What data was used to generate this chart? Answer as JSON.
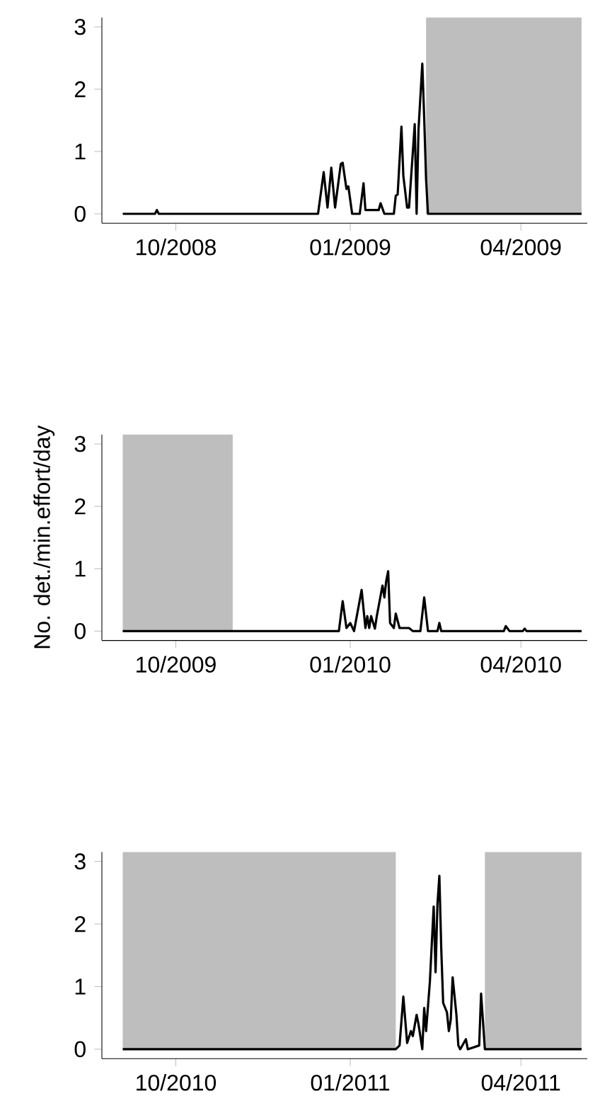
{
  "chart_data": [
    {
      "type": "line",
      "color": "#000000",
      "x": [
        "2008-09-03",
        "2008-09-20",
        "2008-09-21",
        "2008-09-22",
        "2008-12-15",
        "2008-12-18",
        "2008-12-20",
        "2008-12-22",
        "2008-12-24",
        "2008-12-27",
        "2008-12-28",
        "2008-12-30",
        "2008-12-31",
        "2009-01-02",
        "2009-01-06",
        "2009-01-08",
        "2009-01-09",
        "2009-01-16",
        "2009-01-17",
        "2009-01-19",
        "2009-01-24",
        "2009-01-25",
        "2009-01-26",
        "2009-01-28",
        "2009-01-29",
        "2009-01-31",
        "2009-02-01",
        "2009-02-04",
        "2009-02-05",
        "2009-02-06",
        "2009-02-08",
        "2009-02-09",
        "2009-02-10",
        "2009-02-11",
        "2009-05-03"
      ],
      "values": [
        0,
        0,
        0.06,
        0,
        0,
        0.67,
        0.1,
        0.74,
        0.1,
        0.8,
        0.82,
        0.4,
        0.44,
        0,
        0,
        0.49,
        0.06,
        0.06,
        0.17,
        0,
        0,
        0.29,
        0.31,
        1.4,
        0.61,
        0.1,
        0.1,
        1.44,
        0,
        1.35,
        2.41,
        1.54,
        0.55,
        0,
        0
      ],
      "xlim": [
        "2008-08-23",
        "2009-05-06"
      ],
      "ylim": [
        -0.15,
        3.15
      ],
      "xticks": [
        {
          "value": "2008-10-01",
          "label": "10/2008"
        },
        {
          "value": "2009-01-01",
          "label": "01/2009"
        },
        {
          "value": "2009-04-01",
          "label": "04/2009"
        }
      ],
      "yticks": [
        0,
        1,
        2,
        3
      ],
      "bands": [
        {
          "axis": "x",
          "from": "2009-02-10",
          "to": "2009-05-03",
          "color": "#bebebe"
        }
      ]
    },
    {
      "type": "line",
      "color": "#000000",
      "ylabel": "No. det./min.effort/day",
      "x": [
        "2009-09-03",
        "2009-12-26",
        "2009-12-28",
        "2009-12-30",
        "2010-01-01",
        "2010-01-03",
        "2010-01-07",
        "2010-01-09",
        "2010-01-10",
        "2010-01-11",
        "2010-01-12",
        "2010-01-14",
        "2010-01-15",
        "2010-01-18",
        "2010-01-19",
        "2010-01-20",
        "2010-01-21",
        "2010-01-22",
        "2010-01-24",
        "2010-01-25",
        "2010-01-27",
        "2010-02-01",
        "2010-02-03",
        "2010-02-07",
        "2010-02-09",
        "2010-02-11",
        "2010-02-16",
        "2010-02-17",
        "2010-02-18",
        "2010-03-23",
        "2010-03-24",
        "2010-03-26",
        "2010-04-02",
        "2010-04-03",
        "2010-04-04",
        "2010-05-03"
      ],
      "values": [
        0,
        0,
        0.48,
        0.05,
        0.13,
        0,
        0.66,
        0.05,
        0.24,
        0.05,
        0.24,
        0.04,
        0.24,
        0.73,
        0.54,
        0.81,
        0.96,
        0.13,
        0.05,
        0.28,
        0.05,
        0.05,
        0,
        0,
        0.54,
        0,
        0,
        0.13,
        0,
        0,
        0.08,
        0,
        0,
        0.04,
        0,
        0
      ],
      "xlim": [
        "2009-08-23",
        "2010-05-06"
      ],
      "ylim": [
        -0.15,
        3.15
      ],
      "xticks": [
        {
          "value": "2009-10-01",
          "label": "10/2009"
        },
        {
          "value": "2010-01-01",
          "label": "01/2010"
        },
        {
          "value": "2010-04-01",
          "label": "04/2010"
        }
      ],
      "yticks": [
        0,
        1,
        2,
        3
      ],
      "bands": [
        {
          "axis": "x",
          "from": "2009-09-03",
          "to": "2009-10-31",
          "color": "#bebebe"
        }
      ]
    },
    {
      "type": "line",
      "color": "#000000",
      "x": [
        "2010-09-03",
        "2011-01-25",
        "2011-01-27",
        "2011-01-29",
        "2011-01-31",
        "2011-02-02",
        "2011-02-03",
        "2011-02-05",
        "2011-02-06",
        "2011-02-08",
        "2011-02-09",
        "2011-02-10",
        "2011-02-12",
        "2011-02-14",
        "2011-02-15",
        "2011-02-16",
        "2011-02-17",
        "2011-02-18",
        "2011-02-19",
        "2011-02-21",
        "2011-02-22",
        "2011-02-23",
        "2011-02-24",
        "2011-02-26",
        "2011-02-27",
        "2011-02-28",
        "2011-03-03",
        "2011-03-04",
        "2011-03-10",
        "2011-03-11",
        "2011-03-13",
        "2011-05-03"
      ],
      "values": [
        0,
        0,
        0.06,
        0.84,
        0.1,
        0.29,
        0.21,
        0.55,
        0.4,
        0,
        0.66,
        0.29,
        1.08,
        2.28,
        1.23,
        2.32,
        2.77,
        1.6,
        0.74,
        0.59,
        0.29,
        0.47,
        1.15,
        0.55,
        0.06,
        0,
        0.16,
        0,
        0.06,
        0.89,
        0,
        0
      ],
      "xlim": [
        "2010-08-23",
        "2011-05-06"
      ],
      "ylim": [
        -0.15,
        3.15
      ],
      "xticks": [
        {
          "value": "2010-10-01",
          "label": "10/2010"
        },
        {
          "value": "2011-01-01",
          "label": "01/2011"
        },
        {
          "value": "2011-04-01",
          "label": "04/2011"
        }
      ],
      "yticks": [
        0,
        1,
        2,
        3
      ],
      "bands": [
        {
          "axis": "x",
          "from": "2010-09-03",
          "to": "2011-01-25",
          "color": "#bebebe"
        },
        {
          "axis": "x",
          "from": "2011-03-13",
          "to": "2011-05-03",
          "color": "#bebebe"
        }
      ]
    }
  ]
}
